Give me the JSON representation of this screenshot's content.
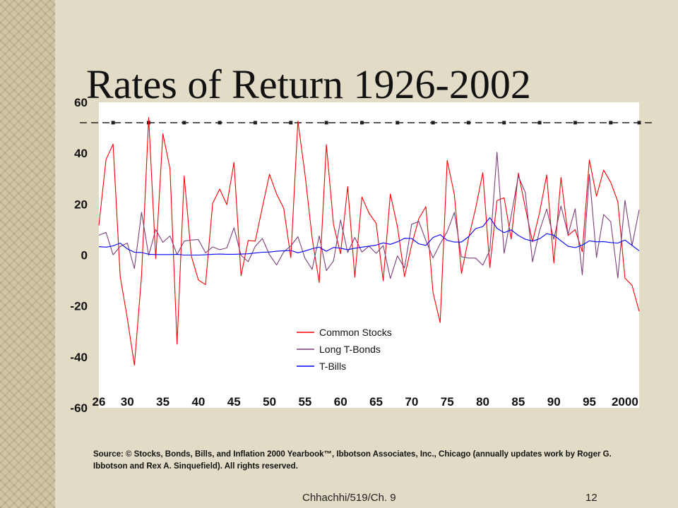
{
  "slide": {
    "title": "Rates of Return 1926-2002",
    "source_text": "Source: © Stocks, Bonds, Bills, and Inflation 2000 Yearbook™, Ibbotson Associates, Inc., Chicago (annually updates work by Roger G. Ibbotson and Rex A. Sinquefield). All rights reserved.",
    "footer_left": "Chhachhi/519/Ch. 9",
    "page_number": "12"
  },
  "chart_data": {
    "type": "line",
    "title": "",
    "xlabel": "",
    "ylabel": "",
    "ylim": [
      -60,
      60
    ],
    "yticks": [
      "60",
      "40",
      "20",
      "0",
      "-20",
      "-40",
      "-60"
    ],
    "xticks": [
      "26",
      "30",
      "35",
      "40",
      "45",
      "50",
      "55",
      "60",
      "65",
      "70",
      "75",
      "80",
      "85",
      "90",
      "95",
      "2000"
    ],
    "xtick_years": [
      1926,
      1930,
      1935,
      1940,
      1945,
      1950,
      1955,
      1960,
      1965,
      1970,
      1975,
      1980,
      1985,
      1990,
      1995,
      2000
    ],
    "x": [
      1926,
      1927,
      1928,
      1929,
      1930,
      1931,
      1932,
      1933,
      1934,
      1935,
      1936,
      1937,
      1938,
      1939,
      1940,
      1941,
      1942,
      1943,
      1944,
      1945,
      1946,
      1947,
      1948,
      1949,
      1950,
      1951,
      1952,
      1953,
      1954,
      1955,
      1956,
      1957,
      1958,
      1959,
      1960,
      1961,
      1962,
      1963,
      1964,
      1965,
      1966,
      1967,
      1968,
      1969,
      1970,
      1971,
      1972,
      1973,
      1974,
      1975,
      1976,
      1977,
      1978,
      1979,
      1980,
      1981,
      1982,
      1983,
      1984,
      1985,
      1986,
      1987,
      1988,
      1989,
      1990,
      1991,
      1992,
      1993,
      1994,
      1995,
      1996,
      1997,
      1998,
      1999,
      2000,
      2001,
      2002
    ],
    "series": [
      {
        "name": "Common Stocks",
        "color": "#ff0000",
        "values": [
          11.6,
          37.5,
          43.6,
          -8.4,
          -24.9,
          -43.3,
          -8.2,
          54.0,
          -1.4,
          47.7,
          33.9,
          -35.0,
          31.1,
          -0.4,
          -9.8,
          -11.6,
          20.3,
          25.9,
          19.8,
          36.4,
          -8.1,
          5.7,
          5.5,
          18.8,
          31.7,
          24.0,
          18.4,
          -1.0,
          52.6,
          31.6,
          6.6,
          -10.8,
          43.4,
          12.0,
          0.5,
          26.9,
          -8.7,
          22.8,
          16.5,
          12.5,
          -10.1,
          24.0,
          11.1,
          -8.5,
          4.0,
          14.3,
          19.0,
          -14.7,
          -26.5,
          37.2,
          23.8,
          -7.2,
          6.6,
          18.4,
          32.4,
          -4.9,
          21.4,
          22.5,
          6.3,
          32.2,
          18.5,
          5.2,
          16.8,
          31.5,
          -3.2,
          30.5,
          7.7,
          10.0,
          1.3,
          37.4,
          23.1,
          33.4,
          28.6,
          21.0,
          -9.1,
          -11.9,
          -22.1
        ]
      },
      {
        "name": "Long T-Bonds",
        "color": "#7b3f7b",
        "values": [
          7.8,
          8.9,
          0.1,
          3.4,
          4.7,
          -5.3,
          16.8,
          -0.1,
          10.0,
          5.0,
          7.5,
          0.2,
          5.5,
          5.9,
          6.1,
          0.9,
          3.2,
          2.1,
          2.8,
          10.7,
          -0.1,
          -2.6,
          3.4,
          6.5,
          0.1,
          -3.9,
          1.2,
          3.6,
          7.2,
          -1.3,
          -5.6,
          7.5,
          -6.1,
          -2.3,
          13.8,
          1.0,
          6.9,
          1.2,
          3.5,
          0.7,
          3.7,
          -9.2,
          -0.3,
          -5.1,
          12.1,
          13.2,
          5.7,
          -1.1,
          4.4,
          9.2,
          16.8,
          -0.7,
          -1.2,
          -1.2,
          -4.0,
          1.9,
          40.4,
          0.7,
          15.5,
          31.0,
          24.5,
          -2.7,
          9.7,
          18.1,
          6.2,
          19.3,
          8.1,
          18.2,
          -7.8,
          31.7,
          -0.9,
          15.9,
          13.1,
          -9.0,
          21.5,
          3.7,
          17.8
        ]
      },
      {
        "name": "T-Bills",
        "color": "#0000ff",
        "values": [
          3.3,
          3.1,
          3.6,
          4.7,
          2.4,
          1.1,
          1.0,
          0.3,
          0.2,
          0.2,
          0.2,
          0.3,
          0.0,
          0.0,
          0.0,
          0.1,
          0.3,
          0.4,
          0.3,
          0.3,
          0.4,
          0.5,
          0.8,
          1.1,
          1.2,
          1.5,
          1.7,
          1.8,
          0.9,
          1.6,
          2.5,
          3.1,
          1.5,
          3.0,
          2.7,
          2.1,
          2.7,
          3.1,
          3.5,
          3.9,
          4.8,
          4.2,
          5.2,
          6.6,
          6.5,
          4.4,
          3.8,
          6.9,
          8.0,
          5.8,
          5.1,
          5.1,
          7.2,
          10.4,
          11.2,
          14.7,
          10.5,
          8.8,
          9.9,
          7.7,
          6.2,
          5.5,
          6.4,
          8.4,
          7.8,
          5.6,
          3.5,
          2.9,
          3.9,
          5.6,
          5.2,
          5.3,
          4.9,
          4.7,
          5.9,
          3.8,
          1.7
        ]
      }
    ],
    "reference_line": {
      "value": 52,
      "style": "dashed",
      "color": "#222222"
    },
    "legend_placement": "bottom-center",
    "grid": false
  }
}
